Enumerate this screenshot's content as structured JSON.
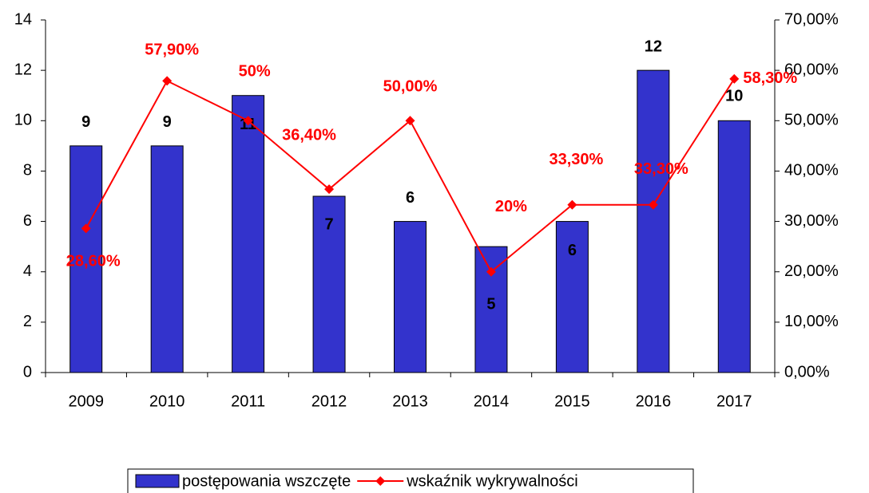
{
  "chart_data": {
    "type": "bar-line",
    "categories": [
      "2009",
      "2010",
      "2011",
      "2012",
      "2013",
      "2014",
      "2015",
      "2016",
      "2017"
    ],
    "series": [
      {
        "name": "postępowania wszczęte",
        "type": "bar",
        "color": "#3333cc",
        "values": [
          9,
          9,
          11,
          7,
          6,
          5,
          6,
          12,
          10
        ]
      },
      {
        "name": "wskaźnik wykrywalności",
        "type": "line",
        "axis": "y2",
        "color": "#ff0000",
        "values": [
          28.6,
          57.9,
          50,
          36.4,
          50,
          20,
          33.3,
          33.3,
          58.3
        ],
        "value_labels": [
          "28,60%",
          "57,90%",
          "50%",
          "36,40%",
          "50,00%",
          "20%",
          "33,30%",
          "33,30%",
          "58,30%"
        ]
      }
    ],
    "ylim": [
      0,
      14
    ],
    "yticks": [
      0,
      2,
      4,
      6,
      8,
      10,
      12,
      14
    ],
    "y2lim": [
      0,
      70
    ],
    "y2ticks": [
      {
        "value": 0,
        "label": "0,00%"
      },
      {
        "value": 10,
        "label": "10,00%"
      },
      {
        "value": 20,
        "label": "20,00%"
      },
      {
        "value": 30,
        "label": "30,00%"
      },
      {
        "value": 40,
        "label": "40,00%"
      },
      {
        "value": 50,
        "label": "50,00%"
      },
      {
        "value": 60,
        "label": "60,00%"
      },
      {
        "value": 70,
        "label": "70,00%"
      }
    ],
    "legend": "bottom"
  }
}
